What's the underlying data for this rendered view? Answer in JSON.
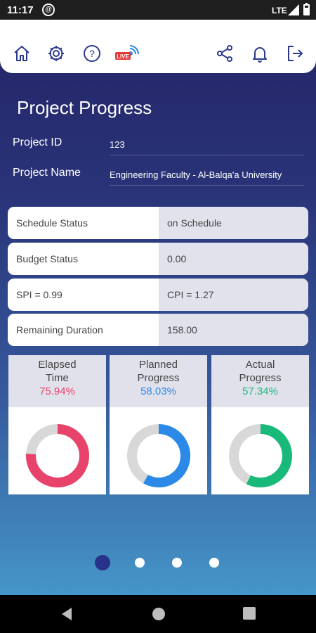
{
  "status_bar": {
    "time": "11:17",
    "network": "LTE"
  },
  "toolbar": {
    "icons": [
      "home-icon",
      "gear-icon",
      "help-icon",
      "live-icon",
      "share-icon",
      "bell-icon",
      "logout-icon"
    ],
    "live_badge": "LIVE"
  },
  "page": {
    "title": "Project Progress",
    "project_id_label": "Project ID",
    "project_id": "123",
    "project_name_label": "Project Name",
    "project_name": "Engineering Faculty - Al-Balqa'a University"
  },
  "status_rows": [
    {
      "left": "Schedule Status",
      "right": "on Schedule"
    },
    {
      "left": "Budget Status",
      "right": "0.00"
    },
    {
      "left": "SPI = 0.99",
      "right": "CPI = 1.27"
    },
    {
      "left": "Remaining Duration",
      "right": "158.00"
    }
  ],
  "cards": [
    {
      "title_line1": "Elapsed",
      "title_line2": "Time",
      "percent_text": "75.94%",
      "percent": 75.94,
      "color": "#e8436a"
    },
    {
      "title_line1": "Planned",
      "title_line2": "Progress",
      "percent_text": "58.03%",
      "percent": 58.03,
      "color": "#2b8ae8"
    },
    {
      "title_line1": "Actual",
      "title_line2": "Progress",
      "percent_text": "57.34%",
      "percent": 57.34,
      "color": "#19b97a"
    }
  ],
  "donut_track_color": "#d8d8d8",
  "pager": {
    "count": 4,
    "active_index": 0,
    "active_color": "#27328a"
  }
}
